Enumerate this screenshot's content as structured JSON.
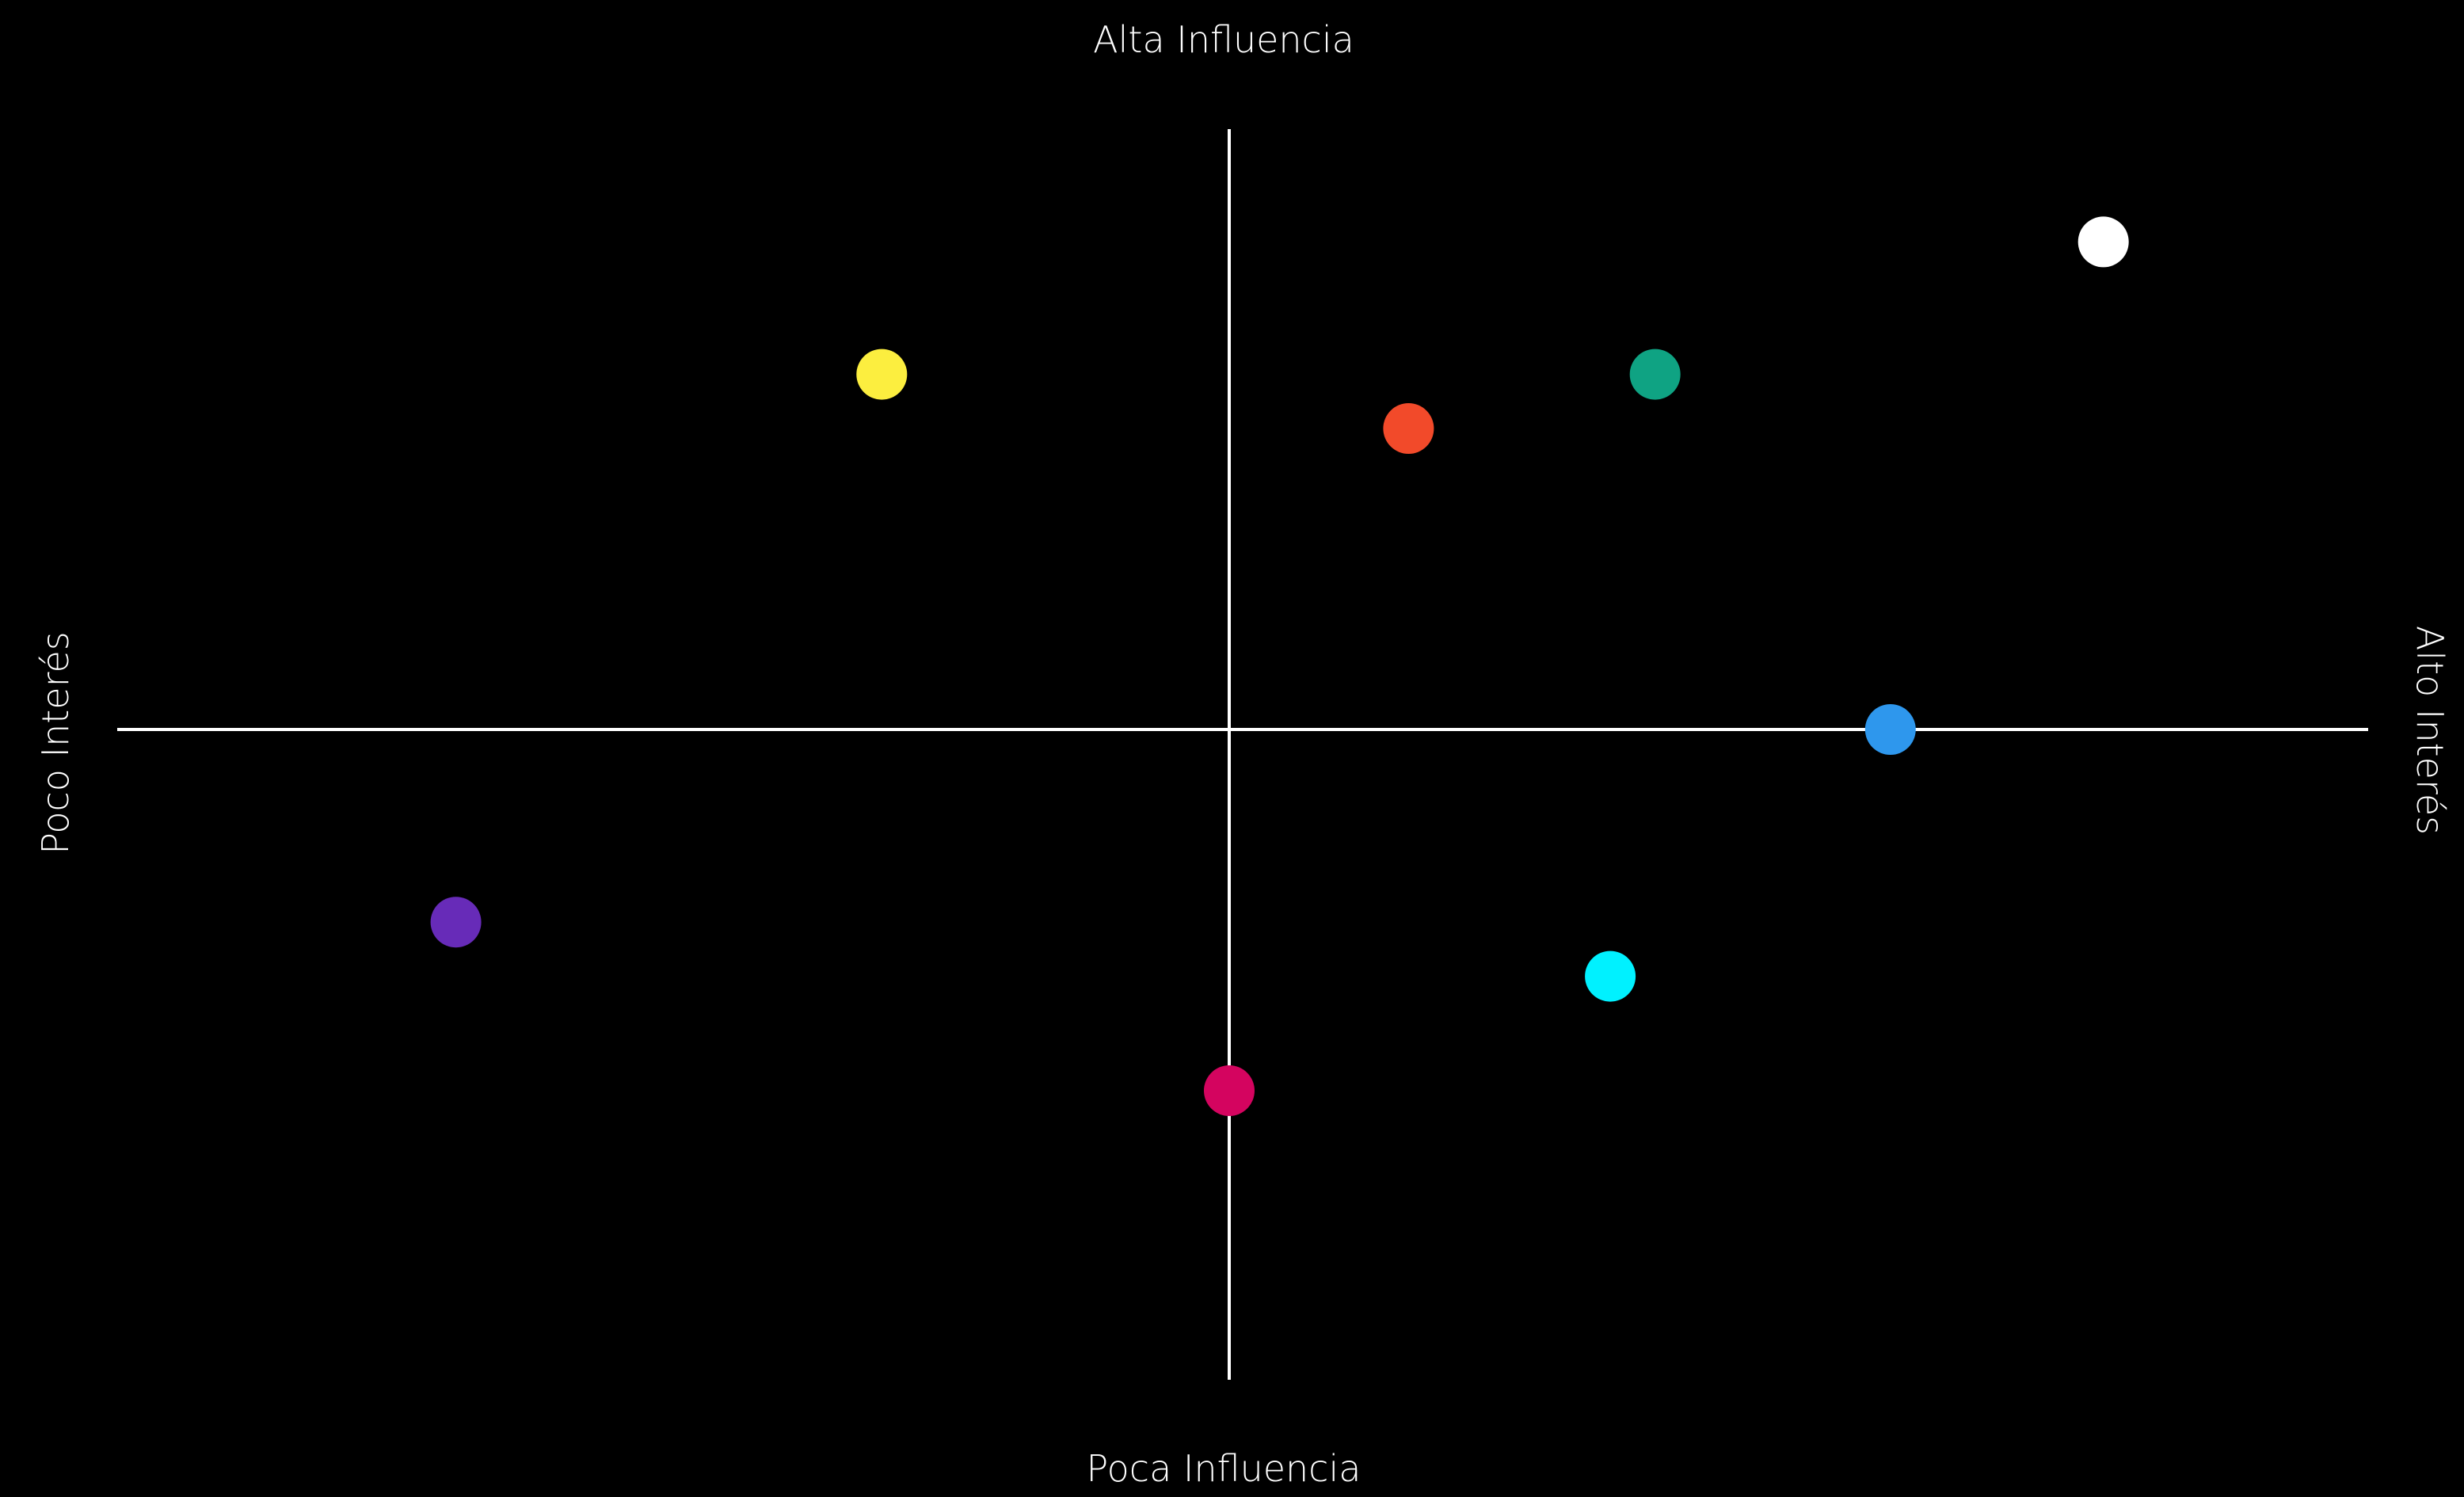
{
  "chart_data": {
    "type": "scatter",
    "title": "",
    "labels": {
      "top": "Alta Influencia",
      "bottom": "Poca Influencia",
      "left": "Poco Interés",
      "right": "Alto Interés"
    },
    "xlim": [
      -10,
      10
    ],
    "ylim": [
      -10,
      10
    ],
    "grid": false,
    "background_color": "#000000",
    "axis_color": "#ffffff",
    "points": [
      {
        "x": -3.1,
        "y": 5.9,
        "color": "#fcee3f"
      },
      {
        "x": 1.6,
        "y": 5.0,
        "color": "#f24a2a"
      },
      {
        "x": 3.8,
        "y": 5.9,
        "color": "#0fa383"
      },
      {
        "x": 7.8,
        "y": 8.1,
        "color": "#ffffff"
      },
      {
        "x": 5.9,
        "y": 0.0,
        "color": "#2e97ed"
      },
      {
        "x": -6.9,
        "y": -3.2,
        "color": "#672bb8"
      },
      {
        "x": 3.4,
        "y": -4.1,
        "color": "#00f1ff"
      },
      {
        "x": 0.0,
        "y": -6.0,
        "color": "#d4045f"
      }
    ]
  }
}
